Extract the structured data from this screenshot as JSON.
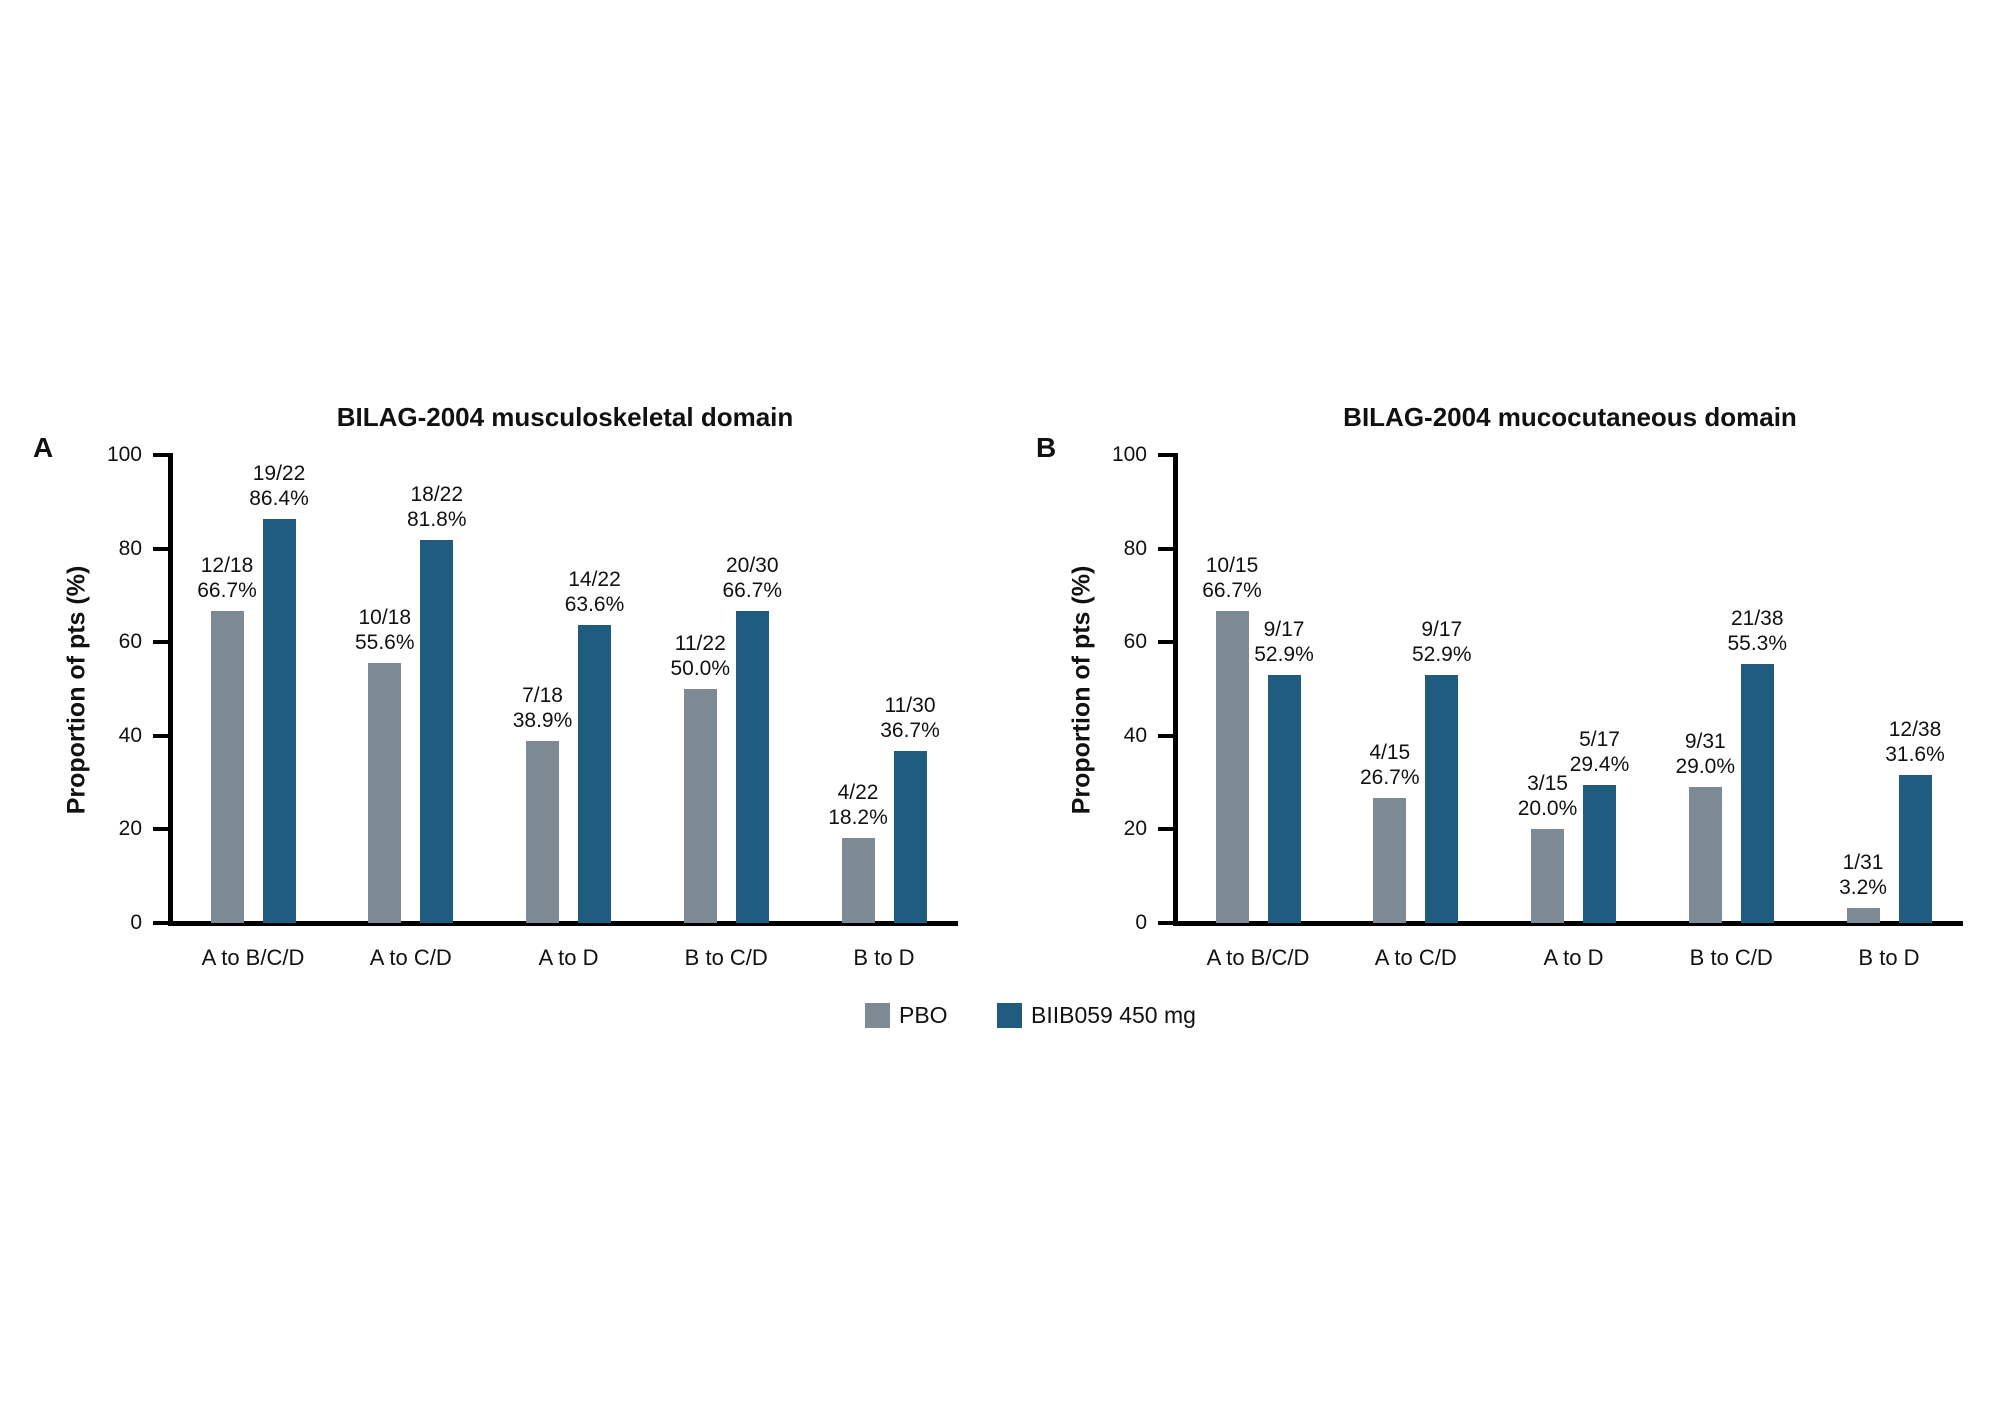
{
  "figure": {
    "legend": [
      {
        "name": "PBO",
        "color": "#7D8A93"
      },
      {
        "name": "BIIB059 450 mg",
        "color": "#1F5C80"
      }
    ],
    "colors": {
      "pbo_gray": "#7D8A93",
      "biib059_teal": "#1F5C80",
      "axis_black": "#000000"
    }
  },
  "chart_data": [
    {
      "type": "bar",
      "panel_label": "A",
      "title": "BILAG-2004 musculoskeletal domain",
      "xlabel": "",
      "ylabel": "Proportion of pts (%)",
      "ylim": [
        0,
        100
      ],
      "yticks": [
        0,
        20,
        40,
        60,
        80,
        100
      ],
      "grid": false,
      "legend_position": "bottom-center",
      "categories": [
        "A to B/C/D",
        "A to C/D",
        "A to D",
        "B to C/D",
        "B to D"
      ],
      "series": [
        {
          "name": "PBO",
          "color": "#7D8A93",
          "values": [
            66.7,
            55.6,
            38.9,
            50.0,
            18.2
          ],
          "labels": [
            {
              "count": "12/18",
              "pct": "66.7%"
            },
            {
              "count": "10/18",
              "pct": "55.6%"
            },
            {
              "count": "7/18",
              "pct": "38.9%"
            },
            {
              "count": "11/22",
              "pct": "50.0%"
            },
            {
              "count": "4/22",
              "pct": "18.2%"
            }
          ]
        },
        {
          "name": "BIIB059 450 mg",
          "color": "#1F5C80",
          "values": [
            86.4,
            81.8,
            63.6,
            66.7,
            36.7
          ],
          "labels": [
            {
              "count": "19/22",
              "pct": "86.4%"
            },
            {
              "count": "18/22",
              "pct": "81.8%"
            },
            {
              "count": "14/22",
              "pct": "63.6%"
            },
            {
              "count": "20/30",
              "pct": "66.7%"
            },
            {
              "count": "11/30",
              "pct": "36.7%"
            }
          ]
        }
      ]
    },
    {
      "type": "bar",
      "panel_label": "B",
      "title": "BILAG-2004 mucocutaneous domain",
      "xlabel": "",
      "ylabel": "Proportion of pts (%)",
      "ylim": [
        0,
        100
      ],
      "yticks": [
        0,
        20,
        40,
        60,
        80,
        100
      ],
      "grid": false,
      "legend_position": "bottom-center",
      "categories": [
        "A to B/C/D",
        "A to C/D",
        "A to D",
        "B to C/D",
        "B to D"
      ],
      "series": [
        {
          "name": "PBO",
          "color": "#7D8A93",
          "values": [
            66.7,
            26.7,
            20.0,
            29.0,
            3.2
          ],
          "labels": [
            {
              "count": "10/15",
              "pct": "66.7%"
            },
            {
              "count": "4/15",
              "pct": "26.7%"
            },
            {
              "count": "3/15",
              "pct": "20.0%"
            },
            {
              "count": "9/31",
              "pct": "29.0%"
            },
            {
              "count": "1/31",
              "pct": "3.2%"
            }
          ]
        },
        {
          "name": "BIIB059 450 mg",
          "color": "#1F5C80",
          "values": [
            52.9,
            52.9,
            29.4,
            55.3,
            31.6
          ],
          "labels": [
            {
              "count": "9/17",
              "pct": "52.9%"
            },
            {
              "count": "9/17",
              "pct": "52.9%"
            },
            {
              "count": "5/17",
              "pct": "29.4%"
            },
            {
              "count": "21/38",
              "pct": "55.3%"
            },
            {
              "count": "12/38",
              "pct": "31.6%"
            }
          ]
        }
      ]
    }
  ]
}
